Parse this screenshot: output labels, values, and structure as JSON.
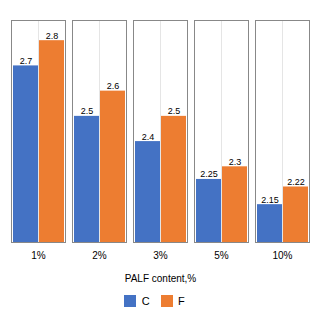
{
  "chart_data": {
    "type": "bar",
    "xlabel": "PALF content,%",
    "categories": [
      "1%",
      "2%",
      "3%",
      "5%",
      "10%"
    ],
    "series": [
      {
        "name": "C",
        "color": "#4472C4",
        "values": [
          2.7,
          2.5,
          2.4,
          2.25,
          2.15
        ]
      },
      {
        "name": "F",
        "color": "#ED7D31",
        "values": [
          2.8,
          2.6,
          2.5,
          2.3,
          2.22
        ]
      }
    ],
    "ylim": [
      2.0,
      2.88
    ],
    "yticks": [],
    "grid": true,
    "legend": "bottom",
    "data_labels": true,
    "tick_labels": "x"
  }
}
